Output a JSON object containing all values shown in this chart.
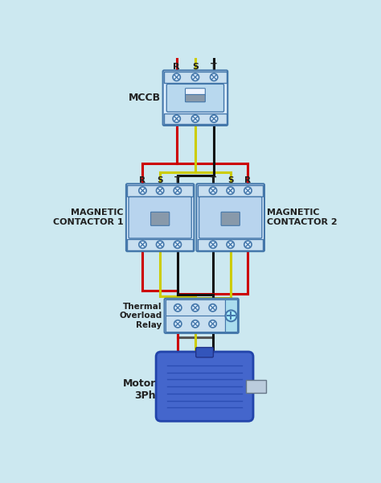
{
  "bg_color": "#cce8f0",
  "mccb_label": "MCCB",
  "mc1_label": "MAGNETIC\nCONTACTOR 1",
  "mc2_label": "MAGNETIC\nCONTACTOR 2",
  "tor_label": "Thermal\nOverload\nRelay",
  "motor_label": "Motor\n3Ph",
  "phase_labels_mccb": [
    "R",
    "S",
    "T"
  ],
  "phase_labels_mc1": [
    "R",
    "S",
    "T"
  ],
  "phase_labels_mc2": [
    "T",
    "S",
    "R"
  ],
  "wire_red": "#cc0000",
  "wire_yellow": "#cccc00",
  "wire_black": "#111111",
  "comp_fill": "#ddeeff",
  "comp_fill2": "#c8dff0",
  "comp_edge": "#4477aa",
  "motor_blue": "#4466cc",
  "motor_dark": "#2244aa"
}
